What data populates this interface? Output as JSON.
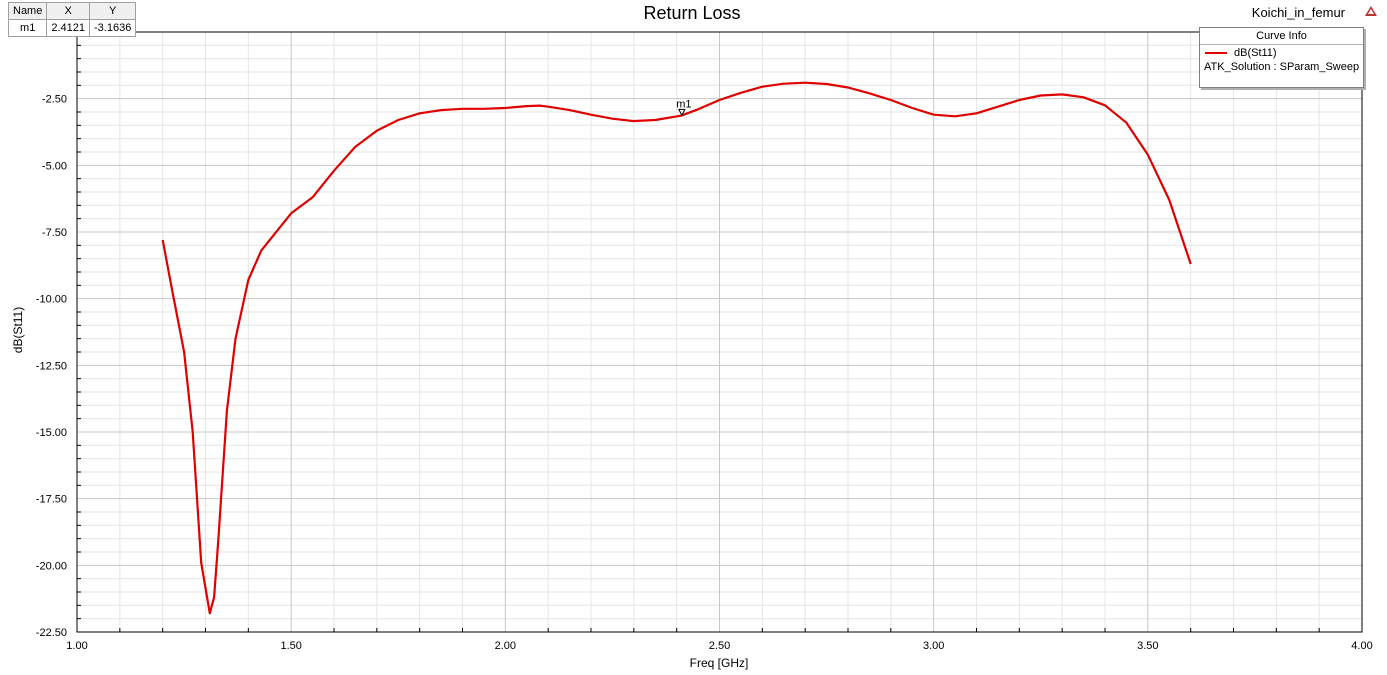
{
  "marker_table": {
    "headers": [
      "Name",
      "X",
      "Y"
    ],
    "rows": [
      [
        "m1",
        "2.4121",
        "-3.1636"
      ]
    ]
  },
  "project_name": "Koichi_in_femur",
  "legend": {
    "header": "Curve Info",
    "series_label": "dB(St11)",
    "solution_label": "ATK_Solution : SParam_Sweep"
  },
  "colors": {
    "curve": "#e00000",
    "grid_major": "#c8c8c8",
    "grid_minor": "#e6e6e6"
  },
  "chart_data": {
    "type": "line",
    "title": "Return Loss",
    "xlabel": "Freq [GHz]",
    "ylabel": "dB(St11)",
    "xlim": [
      1.0,
      4.0
    ],
    "ylim": [
      -22.5,
      0.0
    ],
    "x_ticks": [
      "1.00",
      "1.50",
      "2.00",
      "2.50",
      "3.00",
      "3.50",
      "4.00"
    ],
    "y_ticks": [
      "-2.50",
      "-5.00",
      "-7.50",
      "-10.00",
      "-12.50",
      "-15.00",
      "-17.50",
      "-20.00",
      "-22.50"
    ],
    "grid": true,
    "legend_position": "top-right",
    "marker": {
      "name": "m1",
      "x": 2.4121,
      "y": -3.1636
    },
    "series": [
      {
        "name": "dB(St11)",
        "x": [
          1.2,
          1.22,
          1.25,
          1.27,
          1.29,
          1.31,
          1.32,
          1.33,
          1.35,
          1.37,
          1.4,
          1.43,
          1.47,
          1.5,
          1.55,
          1.6,
          1.65,
          1.7,
          1.75,
          1.8,
          1.85,
          1.9,
          1.95,
          2.0,
          2.05,
          2.08,
          2.1,
          2.15,
          2.2,
          2.25,
          2.3,
          2.35,
          2.41,
          2.45,
          2.5,
          2.55,
          2.6,
          2.65,
          2.7,
          2.75,
          2.8,
          2.85,
          2.9,
          2.95,
          3.0,
          3.05,
          3.1,
          3.15,
          3.2,
          3.25,
          3.3,
          3.35,
          3.4,
          3.45,
          3.5,
          3.55,
          3.6
        ],
        "y": [
          -7.8,
          -9.5,
          -12.0,
          -15.0,
          -19.9,
          -21.8,
          -21.2,
          -19.0,
          -14.2,
          -11.5,
          -9.3,
          -8.2,
          -7.4,
          -6.8,
          -6.2,
          -5.2,
          -4.3,
          -3.7,
          -3.3,
          -3.05,
          -2.93,
          -2.88,
          -2.88,
          -2.85,
          -2.78,
          -2.76,
          -2.8,
          -2.93,
          -3.1,
          -3.25,
          -3.34,
          -3.3,
          -3.14,
          -2.9,
          -2.55,
          -2.28,
          -2.05,
          -1.94,
          -1.9,
          -1.95,
          -2.08,
          -2.3,
          -2.55,
          -2.85,
          -3.1,
          -3.16,
          -3.05,
          -2.8,
          -2.55,
          -2.38,
          -2.34,
          -2.45,
          -2.75,
          -3.4,
          -4.6,
          -6.3,
          -8.7
        ]
      }
    ]
  }
}
